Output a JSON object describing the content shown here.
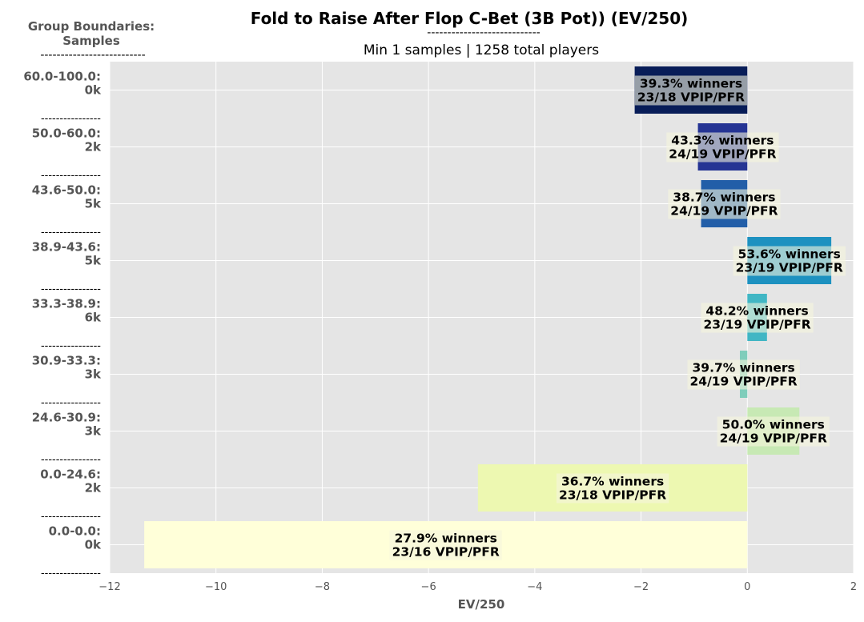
{
  "chart_data": {
    "type": "bar",
    "orientation": "horizontal",
    "title": "Fold to Raise After Flop C-Bet (3B Pot)) (EV/250)",
    "title_underline": "----------------------------",
    "subtitle": "Min 1 samples | 1258 total players",
    "corner_label": [
      "Group Boundaries:",
      "Samples"
    ],
    "corner_underline": "--------------------------",
    "separator": "----------------",
    "xlabel": "EV/250",
    "xlim": [
      -12,
      2
    ],
    "xticks": [
      "−12",
      "−10",
      "−8",
      "−6",
      "−4",
      "−2",
      "0",
      "2"
    ],
    "xtick_values": [
      -12,
      -10,
      -8,
      -6,
      -4,
      -2,
      0,
      2
    ],
    "grid": true,
    "background": "#e5e5e5",
    "groups": [
      {
        "range": "60.0-100.0:",
        "samples": "0k",
        "value": -2.12,
        "winners": "39.3% winners",
        "vpip": "23/18 VPIP/PFR",
        "color": "#081d58"
      },
      {
        "range": "50.0-60.0:",
        "samples": "2k",
        "value": -0.93,
        "winners": "43.3% winners",
        "vpip": "24/19 VPIP/PFR",
        "color": "#253494"
      },
      {
        "range": "43.6-50.0:",
        "samples": "5k",
        "value": -0.87,
        "winners": "38.7% winners",
        "vpip": "24/19 VPIP/PFR",
        "color": "#225ea8"
      },
      {
        "range": "38.9-43.6:",
        "samples": "5k",
        "value": 1.58,
        "winners": "53.6% winners",
        "vpip": "23/19 VPIP/PFR",
        "color": "#1d91c0"
      },
      {
        "range": "33.3-38.9:",
        "samples": "6k",
        "value": 0.37,
        "winners": "48.2% winners",
        "vpip": "23/19 VPIP/PFR",
        "color": "#41b6c4"
      },
      {
        "range": "30.9-33.3:",
        "samples": "3k",
        "value": -0.14,
        "winners": "39.7% winners",
        "vpip": "24/19 VPIP/PFR",
        "color": "#7fcdbb"
      },
      {
        "range": "24.6-30.9:",
        "samples": "3k",
        "value": 0.98,
        "winners": "50.0% winners",
        "vpip": "24/19 VPIP/PFR",
        "color": "#c7e9b4"
      },
      {
        "range": "0.0-24.6:",
        "samples": "2k",
        "value": -5.07,
        "winners": "36.7% winners",
        "vpip": "23/18 VPIP/PFR",
        "color": "#edf8b1"
      },
      {
        "range": "0.0-0.0:",
        "samples": "0k",
        "value": -11.35,
        "winners": "27.9% winners",
        "vpip": "23/16 VPIP/PFR",
        "color": "#ffffd9"
      }
    ]
  }
}
